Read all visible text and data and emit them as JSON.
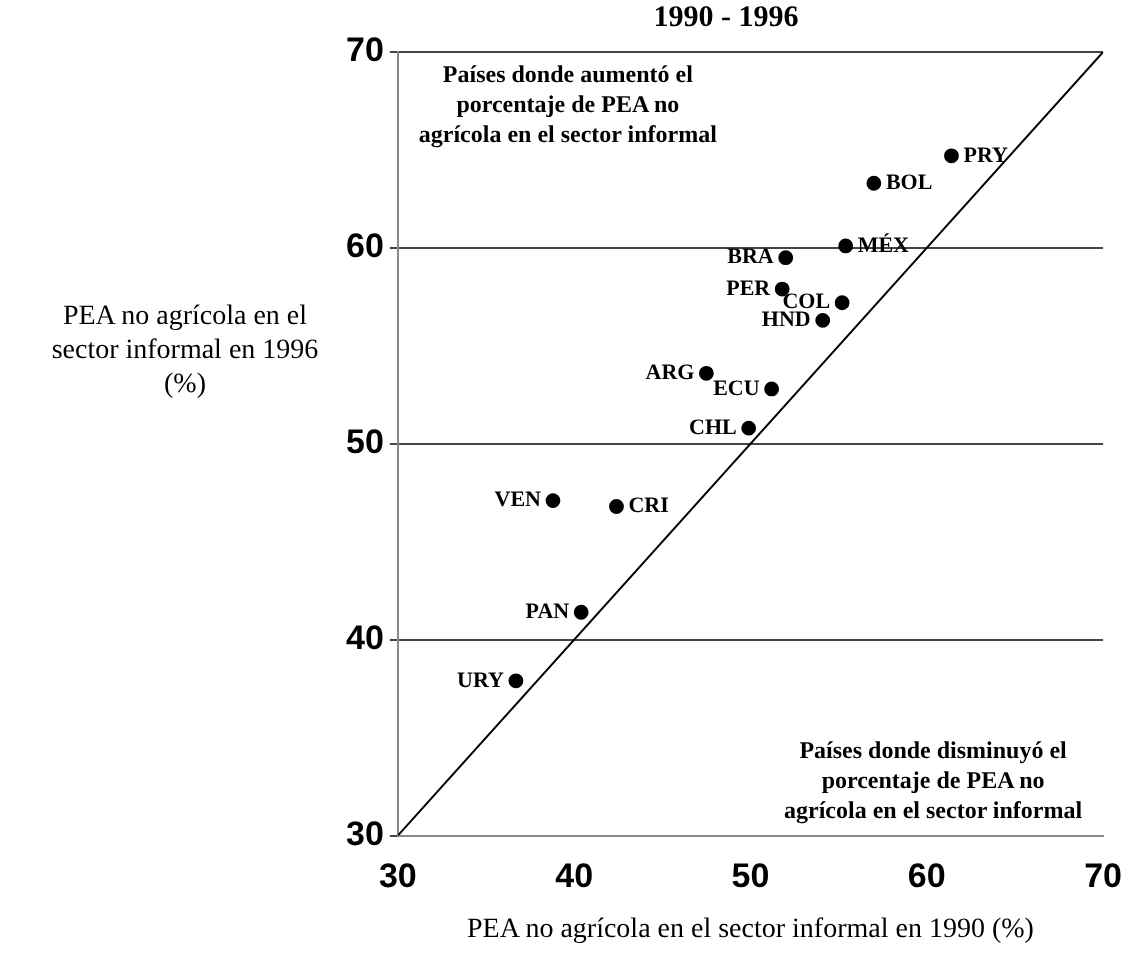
{
  "chart_data": {
    "type": "scatter",
    "title": "1990 - 1996",
    "xlabel": "PEA no agrícola en el sector informal en 1990 (%)",
    "ylabel": "PEA no agrícola en el sector informal en 1996 (%)",
    "xlim": [
      30,
      70
    ],
    "xticks": [
      30,
      40,
      50,
      60,
      70
    ],
    "ylim": [
      30,
      70
    ],
    "yticks": [
      30,
      40,
      50,
      60,
      70
    ],
    "grid": "y",
    "legend": false,
    "marker": "circle",
    "series": [
      {
        "color": "#000000",
        "x": [
          61.4,
          57.0,
          55.4,
          52.0,
          51.8,
          55.2,
          54.1,
          47.5,
          51.2,
          49.9,
          38.8,
          42.4,
          40.4,
          36.7
        ],
        "values": [
          64.7,
          63.3,
          60.1,
          59.5,
          57.9,
          57.2,
          56.3,
          53.6,
          52.8,
          50.8,
          47.1,
          46.8,
          41.4,
          37.9
        ]
      },
      {
        "type": "line",
        "marker": "none",
        "color": "#000000",
        "x": [
          30,
          70
        ],
        "values": [
          30,
          70
        ]
      }
    ],
    "annotations": [
      "Países donde aumentó el porcentaje de PEA no agrícola en el sector informal",
      "Países donde disminuyó el porcentaje de PEA no agrícola en el sector informal",
      {
        "text": "PRY",
        "x": 61.4,
        "y": 64.7
      },
      {
        "text": "BOL",
        "x": 57.0,
        "y": 63.3
      },
      {
        "text": "MÉX",
        "x": 55.4,
        "y": 60.1
      },
      {
        "text": "BRA",
        "x": 52.0,
        "y": 59.5
      },
      {
        "text": "PER",
        "x": 51.8,
        "y": 57.9
      },
      {
        "text": "COL",
        "x": 55.2,
        "y": 57.2
      },
      {
        "text": "HND",
        "x": 54.1,
        "y": 56.3
      },
      {
        "text": "ARG",
        "x": 47.5,
        "y": 53.6
      },
      {
        "text": "ECU",
        "x": 51.2,
        "y": 52.8
      },
      {
        "text": "CHL",
        "x": 49.9,
        "y": 50.8
      },
      {
        "text": "VEN",
        "x": 38.8,
        "y": 47.1
      },
      {
        "text": "CRI",
        "x": 42.4,
        "y": 46.8
      },
      {
        "text": "PAN",
        "x": 40.4,
        "y": 41.4
      },
      {
        "text": "URY",
        "x": 36.7,
        "y": 37.9
      }
    ]
  }
}
